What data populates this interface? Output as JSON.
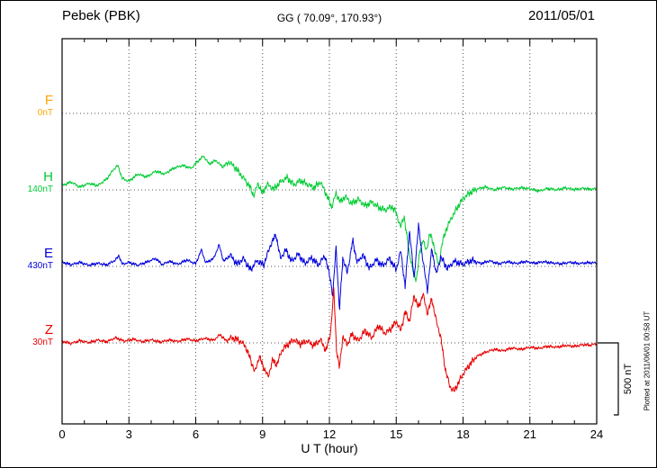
{
  "header": {
    "station": "Pebek (PBK)",
    "gg": "GG ( 70.09°, 170.93°)",
    "date": "2011/05/01"
  },
  "xaxis": {
    "label": "U T (hour)"
  },
  "scale_bar": {
    "label": "500 nT",
    "value_nT": 500
  },
  "footer": {
    "plotted_at": "Plotted at 2011/06/01 00:58 UT"
  },
  "colors": {
    "F": "#FFA500",
    "H": "#00CC33",
    "E": "#0000DD",
    "Z": "#E80000",
    "axis": "#000000",
    "grid": "#555555"
  },
  "chart_data": {
    "type": "line",
    "title": "Pebek (PBK) magnetogram 2011/05/01",
    "x_unit": "hour",
    "x_range": [
      0,
      24
    ],
    "x_ticks": [
      0,
      3,
      6,
      9,
      12,
      15,
      18,
      21,
      24
    ],
    "scale_nT_per_bar": 500,
    "legend_position": "left",
    "grid": "dotted",
    "series": [
      {
        "name": "F",
        "label": "F",
        "baseline_label": "0nT",
        "color": "#FFA500",
        "no_data": true,
        "anchors": []
      },
      {
        "name": "H",
        "label": "H",
        "baseline_label": "140nT",
        "color": "#00CC33",
        "anchors": [
          [
            0,
            30
          ],
          [
            0.4,
            55
          ],
          [
            0.8,
            20
          ],
          [
            1.2,
            45
          ],
          [
            1.6,
            30
          ],
          [
            2,
            75
          ],
          [
            2.3,
            140
          ],
          [
            2.5,
            170
          ],
          [
            2.7,
            80
          ],
          [
            3,
            60
          ],
          [
            3.4,
            110
          ],
          [
            3.8,
            90
          ],
          [
            4.2,
            130
          ],
          [
            4.6,
            110
          ],
          [
            5,
            150
          ],
          [
            5.4,
            170
          ],
          [
            5.8,
            150
          ],
          [
            6.1,
            200
          ],
          [
            6.35,
            235
          ],
          [
            6.6,
            180
          ],
          [
            6.9,
            205
          ],
          [
            7.2,
            160
          ],
          [
            7.5,
            195
          ],
          [
            7.8,
            150
          ],
          [
            8.1,
            90
          ],
          [
            8.4,
            30
          ],
          [
            8.6,
            -40
          ],
          [
            8.8,
            45
          ],
          [
            9,
            -25
          ],
          [
            9.2,
            40
          ],
          [
            9.5,
            5
          ],
          [
            9.8,
            55
          ],
          [
            10.1,
            85
          ],
          [
            10.4,
            35
          ],
          [
            10.7,
            65
          ],
          [
            11,
            40
          ],
          [
            11.3,
            15
          ],
          [
            11.6,
            55
          ],
          [
            11.9,
            -45
          ],
          [
            12.1,
            -120
          ],
          [
            12.3,
            -25
          ],
          [
            12.5,
            -85
          ],
          [
            12.7,
            -45
          ],
          [
            13,
            -95
          ],
          [
            13.3,
            -65
          ],
          [
            13.6,
            -110
          ],
          [
            13.9,
            -85
          ],
          [
            14.2,
            -120
          ],
          [
            14.5,
            -140
          ],
          [
            14.8,
            -115
          ],
          [
            15,
            -160
          ],
          [
            15.2,
            -260
          ],
          [
            15.35,
            -180
          ],
          [
            15.55,
            -400
          ],
          [
            15.75,
            -560
          ],
          [
            15.9,
            -625
          ],
          [
            16.05,
            -440
          ],
          [
            16.2,
            -340
          ],
          [
            16.35,
            -430
          ],
          [
            16.5,
            -300
          ],
          [
            16.7,
            -390
          ],
          [
            16.9,
            -530
          ],
          [
            17.05,
            -380
          ],
          [
            17.25,
            -270
          ],
          [
            17.5,
            -190
          ],
          [
            17.75,
            -120
          ],
          [
            18,
            -60
          ],
          [
            18.3,
            -20
          ],
          [
            18.6,
            5
          ],
          [
            19,
            20
          ],
          [
            19.4,
            0
          ],
          [
            19.8,
            18
          ],
          [
            20.2,
            5
          ],
          [
            20.6,
            15
          ],
          [
            21,
            8
          ],
          [
            21.4,
            -8
          ],
          [
            21.8,
            10
          ],
          [
            22.2,
            0
          ],
          [
            22.6,
            14
          ],
          [
            23,
            2
          ],
          [
            23.4,
            12
          ],
          [
            23.7,
            4
          ],
          [
            24,
            8
          ]
        ]
      },
      {
        "name": "E",
        "label": "E",
        "baseline_label": "430nT",
        "color": "#0000DD",
        "anchors": [
          [
            0,
            30
          ],
          [
            0.4,
            12
          ],
          [
            0.8,
            28
          ],
          [
            1.2,
            8
          ],
          [
            1.6,
            22
          ],
          [
            2,
            10
          ],
          [
            2.4,
            45
          ],
          [
            2.55,
            75
          ],
          [
            2.7,
            15
          ],
          [
            3,
            28
          ],
          [
            3.4,
            8
          ],
          [
            3.8,
            30
          ],
          [
            4.2,
            55
          ],
          [
            4.5,
            12
          ],
          [
            4.8,
            35
          ],
          [
            5.2,
            15
          ],
          [
            5.6,
            45
          ],
          [
            6,
            18
          ],
          [
            6.25,
            115
          ],
          [
            6.45,
            25
          ],
          [
            6.8,
            55
          ],
          [
            7.05,
            150
          ],
          [
            7.25,
            35
          ],
          [
            7.55,
            80
          ],
          [
            7.85,
            15
          ],
          [
            8.15,
            55
          ],
          [
            8.45,
            -25
          ],
          [
            8.75,
            40
          ],
          [
            9.05,
            10
          ],
          [
            9.35,
            145
          ],
          [
            9.6,
            220
          ],
          [
            9.8,
            55
          ],
          [
            10.05,
            115
          ],
          [
            10.3,
            35
          ],
          [
            10.6,
            85
          ],
          [
            10.9,
            20
          ],
          [
            11.2,
            60
          ],
          [
            11.5,
            10
          ],
          [
            11.8,
            75
          ],
          [
            12.05,
            -90
          ],
          [
            12.15,
            -210
          ],
          [
            12.3,
            140
          ],
          [
            12.45,
            -310
          ],
          [
            12.6,
            60
          ],
          [
            12.8,
            -45
          ],
          [
            13.05,
            180
          ],
          [
            13.25,
            25
          ],
          [
            13.5,
            80
          ],
          [
            13.8,
            -15
          ],
          [
            14.1,
            45
          ],
          [
            14.4,
            5
          ],
          [
            14.7,
            55
          ],
          [
            15,
            -25
          ],
          [
            15.2,
            110
          ],
          [
            15.4,
            -140
          ],
          [
            15.6,
            250
          ],
          [
            15.8,
            -90
          ],
          [
            16,
            280
          ],
          [
            16.2,
            40
          ],
          [
            16.4,
            -165
          ],
          [
            16.6,
            125
          ],
          [
            16.8,
            -55
          ],
          [
            17,
            65
          ],
          [
            17.3,
            -15
          ],
          [
            17.6,
            35
          ],
          [
            18,
            15
          ],
          [
            18.4,
            42
          ],
          [
            18.8,
            20
          ],
          [
            19.2,
            38
          ],
          [
            19.6,
            18
          ],
          [
            20,
            32
          ],
          [
            20.4,
            20
          ],
          [
            20.8,
            34
          ],
          [
            21.2,
            22
          ],
          [
            21.6,
            32
          ],
          [
            22,
            24
          ],
          [
            22.4,
            18
          ],
          [
            22.8,
            28
          ],
          [
            23.2,
            20
          ],
          [
            23.6,
            26
          ],
          [
            24,
            24
          ]
        ]
      },
      {
        "name": "Z",
        "label": "Z",
        "baseline_label": "30nT",
        "color": "#E80000",
        "anchors": [
          [
            0,
            12
          ],
          [
            0.4,
            -4
          ],
          [
            0.8,
            16
          ],
          [
            1.2,
            2
          ],
          [
            1.6,
            20
          ],
          [
            2,
            8
          ],
          [
            2.4,
            35
          ],
          [
            2.8,
            12
          ],
          [
            3.2,
            26
          ],
          [
            3.6,
            8
          ],
          [
            4,
            22
          ],
          [
            4.4,
            6
          ],
          [
            4.8,
            20
          ],
          [
            5.2,
            10
          ],
          [
            5.6,
            28
          ],
          [
            6,
            14
          ],
          [
            6.4,
            32
          ],
          [
            6.8,
            18
          ],
          [
            7.1,
            58
          ],
          [
            7.35,
            15
          ],
          [
            7.6,
            35
          ],
          [
            7.9,
            22
          ],
          [
            8.2,
            -15
          ],
          [
            8.45,
            -110
          ],
          [
            8.65,
            -205
          ],
          [
            8.85,
            -95
          ],
          [
            9.05,
            -170
          ],
          [
            9.25,
            -235
          ],
          [
            9.45,
            -120
          ],
          [
            9.65,
            -150
          ],
          [
            9.85,
            -55
          ],
          [
            10.1,
            -15
          ],
          [
            10.4,
            22
          ],
          [
            10.7,
            -8
          ],
          [
            11,
            14
          ],
          [
            11.3,
            -18
          ],
          [
            11.6,
            22
          ],
          [
            11.85,
            -55
          ],
          [
            12.05,
            70
          ],
          [
            12.2,
            375
          ],
          [
            12.32,
            -45
          ],
          [
            12.45,
            -175
          ],
          [
            12.6,
            45
          ],
          [
            12.8,
            -15
          ],
          [
            13,
            60
          ],
          [
            13.3,
            15
          ],
          [
            13.6,
            85
          ],
          [
            13.9,
            35
          ],
          [
            14.2,
            120
          ],
          [
            14.5,
            65
          ],
          [
            14.8,
            105
          ],
          [
            15,
            150
          ],
          [
            15.2,
            85
          ],
          [
            15.4,
            215
          ],
          [
            15.6,
            150
          ],
          [
            15.8,
            330
          ],
          [
            16,
            245
          ],
          [
            16.2,
            340
          ],
          [
            16.4,
            205
          ],
          [
            16.6,
            305
          ],
          [
            16.8,
            150
          ],
          [
            17,
            40
          ],
          [
            17.2,
            -180
          ],
          [
            17.4,
            -300
          ],
          [
            17.6,
            -335
          ],
          [
            17.8,
            -275
          ],
          [
            18,
            -215
          ],
          [
            18.3,
            -150
          ],
          [
            18.6,
            -95
          ],
          [
            19,
            -65
          ],
          [
            19.4,
            -45
          ],
          [
            19.8,
            -55
          ],
          [
            20.2,
            -35
          ],
          [
            20.6,
            -45
          ],
          [
            21,
            -30
          ],
          [
            21.4,
            -38
          ],
          [
            21.8,
            -24
          ],
          [
            22.2,
            -30
          ],
          [
            22.6,
            -18
          ],
          [
            23,
            -24
          ],
          [
            23.4,
            -12
          ],
          [
            23.7,
            -16
          ],
          [
            24,
            -5
          ]
        ]
      }
    ]
  }
}
